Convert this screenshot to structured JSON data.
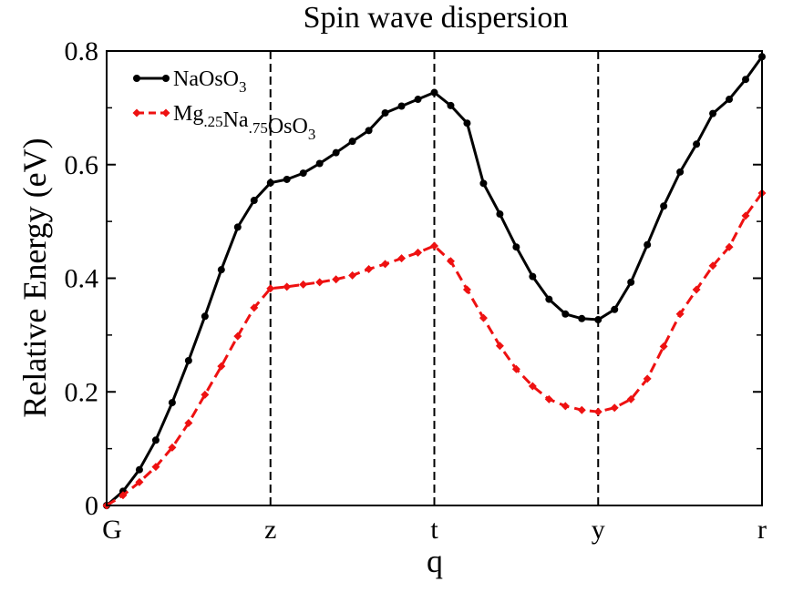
{
  "chart_data": {
    "type": "line",
    "title": "Spin wave dispersion",
    "xlabel": "q",
    "ylabel": "Relative Energy (eV)",
    "ylim": [
      0,
      0.8
    ],
    "xlim": [
      0,
      4
    ],
    "grid": false,
    "legend_position": "top-left",
    "x_ticks": [
      {
        "label": "G",
        "value": 0
      },
      {
        "label": "z",
        "value": 1
      },
      {
        "label": "t",
        "value": 2
      },
      {
        "label": "y",
        "value": 3
      },
      {
        "label": "r",
        "value": 4
      }
    ],
    "y_ticks": [
      {
        "label": "0",
        "value": 0
      },
      {
        "label": "0.2",
        "value": 0.2
      },
      {
        "label": "0.4",
        "value": 0.4
      },
      {
        "label": "0.6",
        "value": 0.6
      },
      {
        "label": "0.8",
        "value": 0.8
      }
    ],
    "vertical_lines": [
      1,
      2,
      3,
      4
    ],
    "series": [
      {
        "name": "NaOsO3",
        "legend": {
          "parts": [
            {
              "t": "NaOsO"
            },
            {
              "t": "3",
              "sub": true
            }
          ]
        },
        "color": "#000000",
        "dashed": false,
        "marker": "circle",
        "x": [
          0,
          0.1,
          0.2,
          0.3,
          0.4,
          0.5,
          0.6,
          0.7,
          0.8,
          0.9,
          1.0,
          1.1,
          1.2,
          1.3,
          1.4,
          1.5,
          1.6,
          1.7,
          1.8,
          1.9,
          2.0,
          2.1,
          2.2,
          2.3,
          2.4,
          2.5,
          2.6,
          2.7,
          2.8,
          2.9,
          3.0,
          3.1,
          3.2,
          3.3,
          3.4,
          3.5,
          3.6,
          3.7,
          3.8,
          3.9,
          4.0
        ],
        "values": [
          0,
          0.025,
          0.063,
          0.115,
          0.181,
          0.255,
          0.333,
          0.415,
          0.49,
          0.537,
          0.568,
          0.574,
          0.585,
          0.602,
          0.621,
          0.641,
          0.66,
          0.691,
          0.703,
          0.715,
          0.727,
          0.704,
          0.673,
          0.567,
          0.513,
          0.455,
          0.403,
          0.363,
          0.337,
          0.329,
          0.327,
          0.345,
          0.393,
          0.459,
          0.527,
          0.587,
          0.636,
          0.69,
          0.715,
          0.75,
          0.79
        ]
      },
      {
        "name": "Mg.25Na.75OsO3",
        "legend": {
          "parts": [
            {
              "t": "Mg"
            },
            {
              "t": ".25",
              "sub": true
            },
            {
              "t": "Na"
            },
            {
              "t": ".75",
              "sub": true
            },
            {
              "t": "OsO"
            },
            {
              "t": "3",
              "sub": true
            }
          ]
        },
        "color": "#ee1111",
        "dashed": true,
        "marker": "diamond",
        "x": [
          0,
          0.1,
          0.2,
          0.3,
          0.4,
          0.5,
          0.6,
          0.7,
          0.8,
          0.9,
          1.0,
          1.1,
          1.2,
          1.3,
          1.4,
          1.5,
          1.6,
          1.7,
          1.8,
          1.9,
          2.0,
          2.1,
          2.2,
          2.3,
          2.4,
          2.5,
          2.6,
          2.7,
          2.8,
          2.9,
          3.0,
          3.1,
          3.2,
          3.3,
          3.4,
          3.5,
          3.6,
          3.7,
          3.8,
          3.9,
          4.0
        ],
        "values": [
          0,
          0.018,
          0.041,
          0.068,
          0.102,
          0.145,
          0.195,
          0.245,
          0.298,
          0.348,
          0.382,
          0.385,
          0.389,
          0.393,
          0.398,
          0.405,
          0.416,
          0.425,
          0.435,
          0.445,
          0.457,
          0.43,
          0.38,
          0.33,
          0.281,
          0.24,
          0.21,
          0.187,
          0.175,
          0.168,
          0.165,
          0.172,
          0.187,
          0.223,
          0.28,
          0.337,
          0.38,
          0.422,
          0.455,
          0.51,
          0.55
        ]
      }
    ]
  }
}
